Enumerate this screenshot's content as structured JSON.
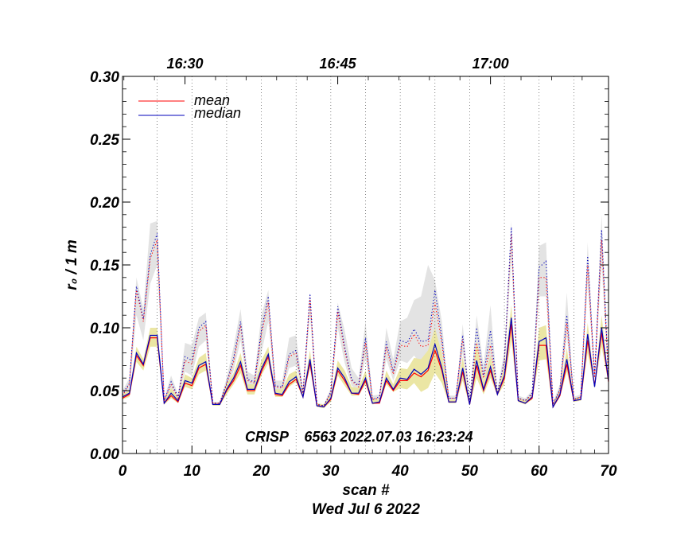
{
  "chart_data": {
    "type": "line",
    "xlabel": "scan #",
    "ylabel": "r₀ / 1 m",
    "xlim": [
      0,
      70
    ],
    "ylim": [
      0.0,
      0.3
    ],
    "x_ticks": [
      0,
      10,
      20,
      30,
      40,
      50,
      60,
      70
    ],
    "x_tick_labels": [
      "0",
      "10",
      "20",
      "30",
      "40",
      "50",
      "60",
      "70"
    ],
    "y_ticks": [
      0.0,
      0.05,
      0.1,
      0.15,
      0.2,
      0.25,
      0.3
    ],
    "y_tick_labels": [
      "0.00",
      "0.05",
      "0.10",
      "0.15",
      "0.20",
      "0.25",
      "0.30"
    ],
    "top_axis": {
      "ticks": [
        9,
        31,
        53
      ],
      "labels": [
        "16:30",
        "16:45",
        "17:00"
      ]
    },
    "vertical_dotted_lines": [
      5,
      10,
      15,
      20,
      25,
      30,
      35,
      40,
      45,
      50,
      55,
      60,
      65
    ],
    "annotation": "CRISP    6563 2022.07.03 16:23:24",
    "date_label": "Wed Jul  6 2022",
    "legend": {
      "position": "top-left",
      "entries": [
        "mean",
        "median"
      ]
    },
    "colors": {
      "mean": "#ff0000",
      "median": "#0000bb",
      "band_low": "#ebe6a4",
      "band_high": "#e3e3e3"
    },
    "x": [
      0,
      1,
      2,
      3,
      4,
      5,
      6,
      7,
      8,
      9,
      10,
      11,
      12,
      13,
      14,
      15,
      16,
      17,
      18,
      19,
      20,
      21,
      22,
      23,
      24,
      25,
      26,
      27,
      28,
      29,
      30,
      31,
      32,
      33,
      34,
      35,
      36,
      37,
      38,
      39,
      40,
      41,
      42,
      43,
      44,
      45,
      46,
      47,
      48,
      49,
      50,
      51,
      52,
      53,
      54,
      55,
      56,
      57,
      58,
      59,
      60,
      61,
      62,
      63,
      64,
      65,
      66,
      67,
      68,
      69,
      70
    ],
    "series": [
      {
        "name": "mean",
        "style": "solid",
        "values": [
          0.044,
          0.047,
          0.078,
          0.07,
          0.092,
          0.092,
          0.04,
          0.046,
          0.041,
          0.056,
          0.054,
          0.068,
          0.071,
          0.039,
          0.039,
          0.05,
          0.058,
          0.07,
          0.05,
          0.05,
          0.065,
          0.077,
          0.047,
          0.046,
          0.055,
          0.059,
          0.045,
          0.072,
          0.038,
          0.037,
          0.043,
          0.066,
          0.058,
          0.048,
          0.047,
          0.058,
          0.04,
          0.04,
          0.058,
          0.05,
          0.058,
          0.058,
          0.064,
          0.061,
          0.066,
          0.082,
          0.066,
          0.041,
          0.041,
          0.065,
          0.039,
          0.07,
          0.05,
          0.066,
          0.047,
          0.06,
          0.103,
          0.042,
          0.04,
          0.044,
          0.086,
          0.086,
          0.037,
          0.046,
          0.071,
          0.042,
          0.043,
          0.09,
          0.054,
          0.096,
          0.057
        ]
      },
      {
        "name": "median",
        "style": "solid",
        "values": [
          0.045,
          0.048,
          0.08,
          0.071,
          0.094,
          0.094,
          0.04,
          0.048,
          0.042,
          0.058,
          0.056,
          0.07,
          0.073,
          0.039,
          0.039,
          0.051,
          0.06,
          0.073,
          0.051,
          0.051,
          0.067,
          0.079,
          0.048,
          0.047,
          0.057,
          0.061,
          0.045,
          0.075,
          0.038,
          0.037,
          0.044,
          0.068,
          0.06,
          0.048,
          0.048,
          0.06,
          0.04,
          0.041,
          0.06,
          0.051,
          0.06,
          0.059,
          0.067,
          0.063,
          0.068,
          0.087,
          0.068,
          0.041,
          0.041,
          0.068,
          0.039,
          0.074,
          0.051,
          0.069,
          0.047,
          0.062,
          0.108,
          0.042,
          0.04,
          0.045,
          0.089,
          0.092,
          0.037,
          0.047,
          0.075,
          0.042,
          0.043,
          0.095,
          0.053,
          0.1,
          0.058
        ]
      },
      {
        "name": "mean_upper",
        "style": "dotted",
        "values": [
          0.046,
          0.055,
          0.13,
          0.105,
          0.155,
          0.17,
          0.042,
          0.055,
          0.044,
          0.074,
          0.071,
          0.097,
          0.102,
          0.04,
          0.04,
          0.055,
          0.073,
          0.102,
          0.058,
          0.056,
          0.095,
          0.12,
          0.053,
          0.052,
          0.077,
          0.08,
          0.048,
          0.124,
          0.039,
          0.038,
          0.048,
          0.113,
          0.082,
          0.058,
          0.053,
          0.088,
          0.043,
          0.044,
          0.085,
          0.063,
          0.086,
          0.085,
          0.095,
          0.085,
          0.086,
          0.12,
          0.088,
          0.044,
          0.044,
          0.091,
          0.041,
          0.088,
          0.06,
          0.086,
          0.048,
          0.072,
          0.175,
          0.044,
          0.042,
          0.047,
          0.14,
          0.14,
          0.039,
          0.05,
          0.104,
          0.043,
          0.045,
          0.15,
          0.06,
          0.17,
          0.06
        ]
      },
      {
        "name": "median_upper",
        "style": "dotted",
        "values": [
          0.047,
          0.056,
          0.133,
          0.107,
          0.158,
          0.175,
          0.042,
          0.057,
          0.045,
          0.077,
          0.074,
          0.1,
          0.105,
          0.04,
          0.04,
          0.056,
          0.076,
          0.105,
          0.059,
          0.057,
          0.098,
          0.125,
          0.054,
          0.053,
          0.079,
          0.082,
          0.048,
          0.127,
          0.039,
          0.038,
          0.049,
          0.117,
          0.085,
          0.059,
          0.054,
          0.092,
          0.043,
          0.045,
          0.089,
          0.065,
          0.09,
          0.088,
          0.099,
          0.089,
          0.09,
          0.13,
          0.092,
          0.044,
          0.044,
          0.094,
          0.041,
          0.1,
          0.062,
          0.098,
          0.048,
          0.074,
          0.18,
          0.044,
          0.042,
          0.048,
          0.148,
          0.153,
          0.039,
          0.051,
          0.11,
          0.043,
          0.045,
          0.157,
          0.062,
          0.178,
          0.061
        ]
      }
    ],
    "band_low": {
      "lower": [
        0.043,
        0.045,
        0.073,
        0.066,
        0.085,
        0.085,
        0.039,
        0.044,
        0.04,
        0.053,
        0.051,
        0.063,
        0.066,
        0.038,
        0.038,
        0.047,
        0.055,
        0.064,
        0.047,
        0.047,
        0.062,
        0.072,
        0.045,
        0.045,
        0.053,
        0.057,
        0.044,
        0.068,
        0.037,
        0.036,
        0.041,
        0.062,
        0.054,
        0.046,
        0.046,
        0.055,
        0.039,
        0.04,
        0.055,
        0.049,
        0.052,
        0.051,
        0.056,
        0.049,
        0.052,
        0.064,
        0.056,
        0.04,
        0.04,
        0.058,
        0.038,
        0.06,
        0.047,
        0.06,
        0.046,
        0.055,
        0.09,
        0.041,
        0.039,
        0.043,
        0.074,
        0.075,
        0.036,
        0.045,
        0.065,
        0.041,
        0.042,
        0.08,
        0.052,
        0.085,
        0.056
      ],
      "upper": [
        0.047,
        0.05,
        0.085,
        0.075,
        0.1,
        0.1,
        0.042,
        0.052,
        0.044,
        0.063,
        0.06,
        0.076,
        0.08,
        0.04,
        0.04,
        0.055,
        0.064,
        0.08,
        0.055,
        0.055,
        0.074,
        0.085,
        0.051,
        0.051,
        0.063,
        0.066,
        0.048,
        0.082,
        0.04,
        0.039,
        0.047,
        0.074,
        0.066,
        0.053,
        0.052,
        0.066,
        0.043,
        0.043,
        0.066,
        0.055,
        0.068,
        0.067,
        0.076,
        0.075,
        0.082,
        0.1,
        0.079,
        0.043,
        0.043,
        0.077,
        0.041,
        0.088,
        0.057,
        0.078,
        0.05,
        0.068,
        0.118,
        0.044,
        0.042,
        0.046,
        0.1,
        0.102,
        0.039,
        0.05,
        0.084,
        0.044,
        0.045,
        0.104,
        0.056,
        0.11,
        0.06
      ]
    },
    "band_high": {
      "lower": [
        0.045,
        0.05,
        0.11,
        0.09,
        0.135,
        0.15,
        0.041,
        0.052,
        0.043,
        0.065,
        0.062,
        0.085,
        0.09,
        0.039,
        0.039,
        0.052,
        0.066,
        0.09,
        0.054,
        0.053,
        0.08,
        0.105,
        0.05,
        0.049,
        0.068,
        0.07,
        0.046,
        0.11,
        0.038,
        0.037,
        0.046,
        0.1,
        0.072,
        0.054,
        0.05,
        0.076,
        0.041,
        0.042,
        0.075,
        0.058,
        0.074,
        0.072,
        0.078,
        0.07,
        0.07,
        0.1,
        0.075,
        0.042,
        0.042,
        0.08,
        0.04,
        0.077,
        0.056,
        0.076,
        0.047,
        0.066,
        0.155,
        0.043,
        0.041,
        0.046,
        0.125,
        0.125,
        0.038,
        0.048,
        0.093,
        0.042,
        0.044,
        0.135,
        0.058,
        0.15,
        0.059
      ],
      "upper": [
        0.05,
        0.06,
        0.14,
        0.115,
        0.183,
        0.185,
        0.044,
        0.062,
        0.047,
        0.088,
        0.086,
        0.108,
        0.112,
        0.041,
        0.041,
        0.06,
        0.085,
        0.115,
        0.065,
        0.062,
        0.11,
        0.13,
        0.058,
        0.058,
        0.092,
        0.094,
        0.051,
        0.128,
        0.04,
        0.039,
        0.052,
        0.12,
        0.098,
        0.068,
        0.06,
        0.105,
        0.046,
        0.047,
        0.1,
        0.075,
        0.105,
        0.108,
        0.122,
        0.125,
        0.15,
        0.138,
        0.105,
        0.046,
        0.046,
        0.103,
        0.043,
        0.11,
        0.07,
        0.118,
        0.05,
        0.082,
        0.185,
        0.046,
        0.044,
        0.05,
        0.165,
        0.168,
        0.041,
        0.055,
        0.128,
        0.045,
        0.047,
        0.168,
        0.066,
        0.19,
        0.062
      ]
    }
  }
}
